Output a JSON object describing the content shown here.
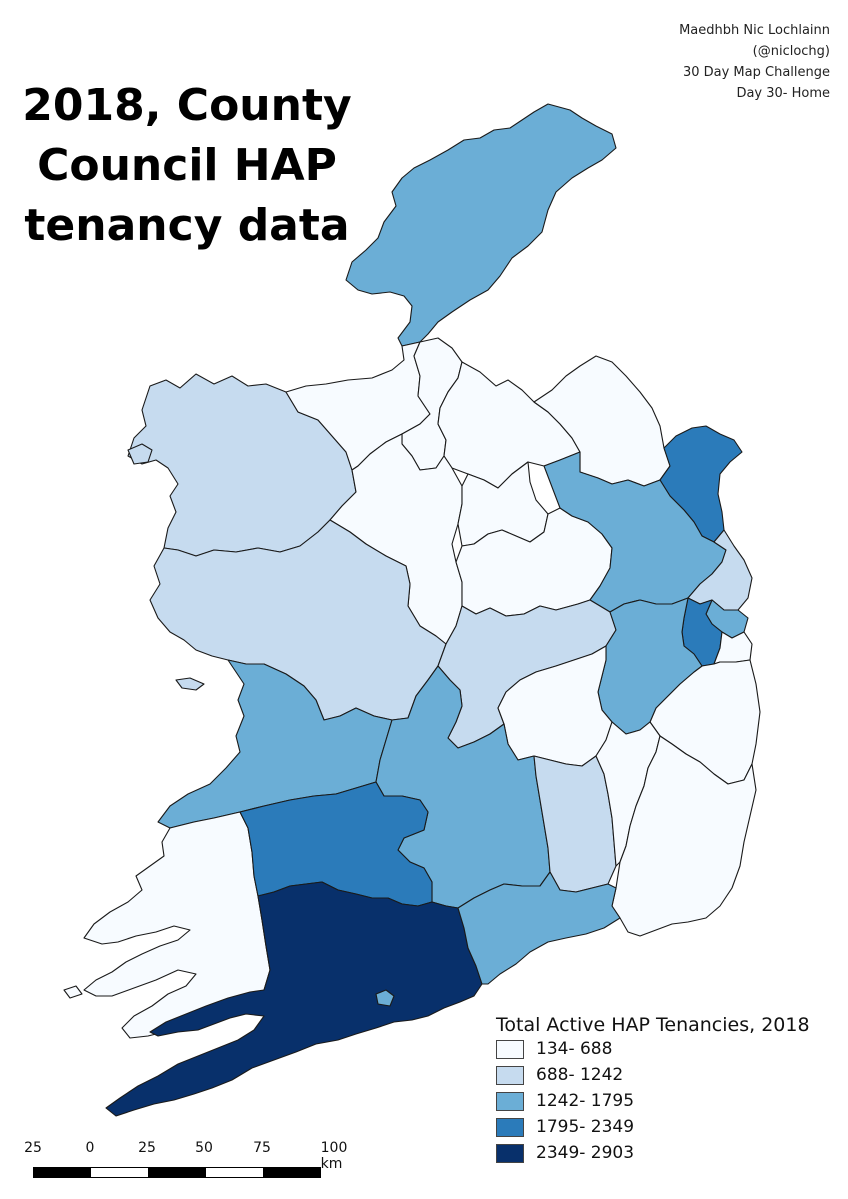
{
  "title": {
    "line1": "2018, County",
    "line2": "Council HAP",
    "line3": "tenancy data"
  },
  "credit": {
    "author": "Maedhbh Nic Lochlainn",
    "handle": "(@niclochg)",
    "challenge": "30 Day Map Challenge",
    "day": "Day 30- Home"
  },
  "legend": {
    "title": "Total Active HAP Tenancies, 2018",
    "classes": [
      {
        "label": "134- 688",
        "color": "#f7fbff"
      },
      {
        "label": "688- 1242",
        "color": "#c6dbef"
      },
      {
        "label": "1242- 1795",
        "color": "#6baed6"
      },
      {
        "label": "1795- 2349",
        "color": "#2b7bba"
      },
      {
        "label": "2349- 2903",
        "color": "#08306b"
      }
    ]
  },
  "scalebar": {
    "labels": [
      "25",
      "0",
      "25",
      "50",
      "75",
      "100 km"
    ]
  },
  "map_data": {
    "regions": [
      {
        "name": "donegal",
        "class": 2
      },
      {
        "name": "mayo",
        "class": 1
      },
      {
        "name": "sligo",
        "class": 0
      },
      {
        "name": "leitrim",
        "class": 0
      },
      {
        "name": "cavan",
        "class": 0
      },
      {
        "name": "monaghan",
        "class": 0
      },
      {
        "name": "louth",
        "class": 3
      },
      {
        "name": "roscommon",
        "class": 0
      },
      {
        "name": "longford",
        "class": 0
      },
      {
        "name": "westmeath",
        "class": 0
      },
      {
        "name": "meath",
        "class": 2
      },
      {
        "name": "galway",
        "class": 1
      },
      {
        "name": "offaly",
        "class": 1
      },
      {
        "name": "kildare",
        "class": 2
      },
      {
        "name": "dublin-fingal",
        "class": 1
      },
      {
        "name": "dublin-city",
        "class": 2
      },
      {
        "name": "south-dublin",
        "class": 3
      },
      {
        "name": "dun-laoghaire",
        "class": 0
      },
      {
        "name": "wicklow",
        "class": 0
      },
      {
        "name": "laois",
        "class": 0
      },
      {
        "name": "clare",
        "class": 2
      },
      {
        "name": "tipperary",
        "class": 2
      },
      {
        "name": "kilkenny",
        "class": 1
      },
      {
        "name": "carlow",
        "class": 0
      },
      {
        "name": "wexford",
        "class": 0
      },
      {
        "name": "kerry",
        "class": 0
      },
      {
        "name": "limerick",
        "class": 3
      },
      {
        "name": "cork",
        "class": 4
      },
      {
        "name": "waterford",
        "class": 2
      },
      {
        "name": "cork-city",
        "class": 2
      }
    ]
  }
}
